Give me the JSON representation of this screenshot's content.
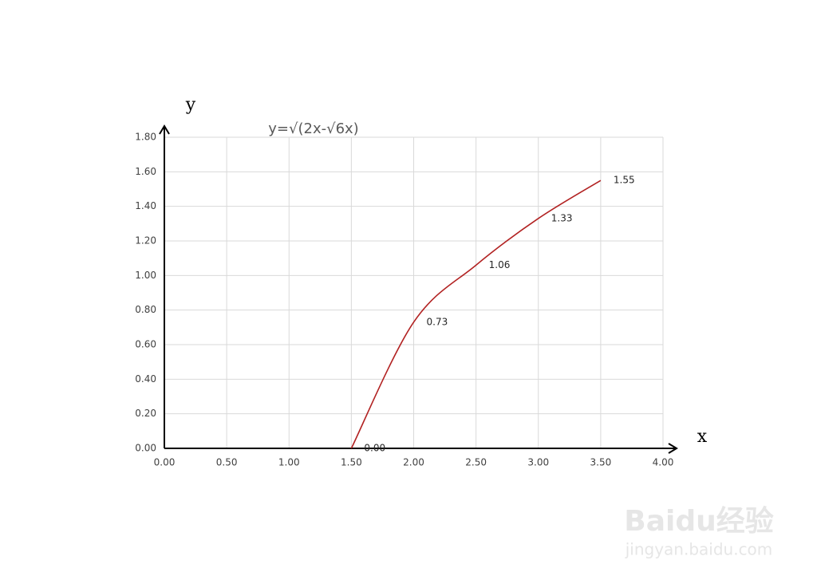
{
  "chart_data": {
    "type": "line",
    "title": "y=√(2x-√6x)",
    "x_label": "x",
    "y_label": "y",
    "x": [
      1.5,
      2,
      2.5,
      3,
      3.5
    ],
    "series": [
      {
        "color": "#b22222",
        "values": [
          0,
          0.73,
          1.06,
          1.33,
          1.55
        ],
        "value_labels": [
          "0.00",
          "0.73",
          "1.06",
          "1.33",
          "1.55"
        ]
      }
    ],
    "xlim": [
      0,
      4
    ],
    "ylim": [
      0,
      1.8
    ],
    "xticks": [
      {
        "value": 0,
        "label": "0.00"
      },
      {
        "value": 0.5,
        "label": "0.50"
      },
      {
        "value": 1,
        "label": "1.00"
      },
      {
        "value": 1.5,
        "label": "1.50"
      },
      {
        "value": 2,
        "label": "2.00"
      },
      {
        "value": 2.5,
        "label": "2.50"
      },
      {
        "value": 3,
        "label": "3.00"
      },
      {
        "value": 3.5,
        "label": "3.50"
      },
      {
        "value": 4,
        "label": "4.00"
      }
    ],
    "yticks": [
      {
        "value": 0,
        "label": "0.00"
      },
      {
        "value": 0.2,
        "label": "0.20"
      },
      {
        "value": 0.4,
        "label": "0.40"
      },
      {
        "value": 0.6,
        "label": "0.60"
      },
      {
        "value": 0.8,
        "label": "0.80"
      },
      {
        "value": 1,
        "label": "1.00"
      },
      {
        "value": 1.2,
        "label": "1.20"
      },
      {
        "value": 1.4,
        "label": "1.40"
      },
      {
        "value": 1.6,
        "label": "1.60"
      },
      {
        "value": 1.8,
        "label": "1.80"
      }
    ],
    "grid": true,
    "smooth": true
  },
  "watermark": {
    "logo": "Baidu经验",
    "url": "jingyan.baidu.com"
  }
}
